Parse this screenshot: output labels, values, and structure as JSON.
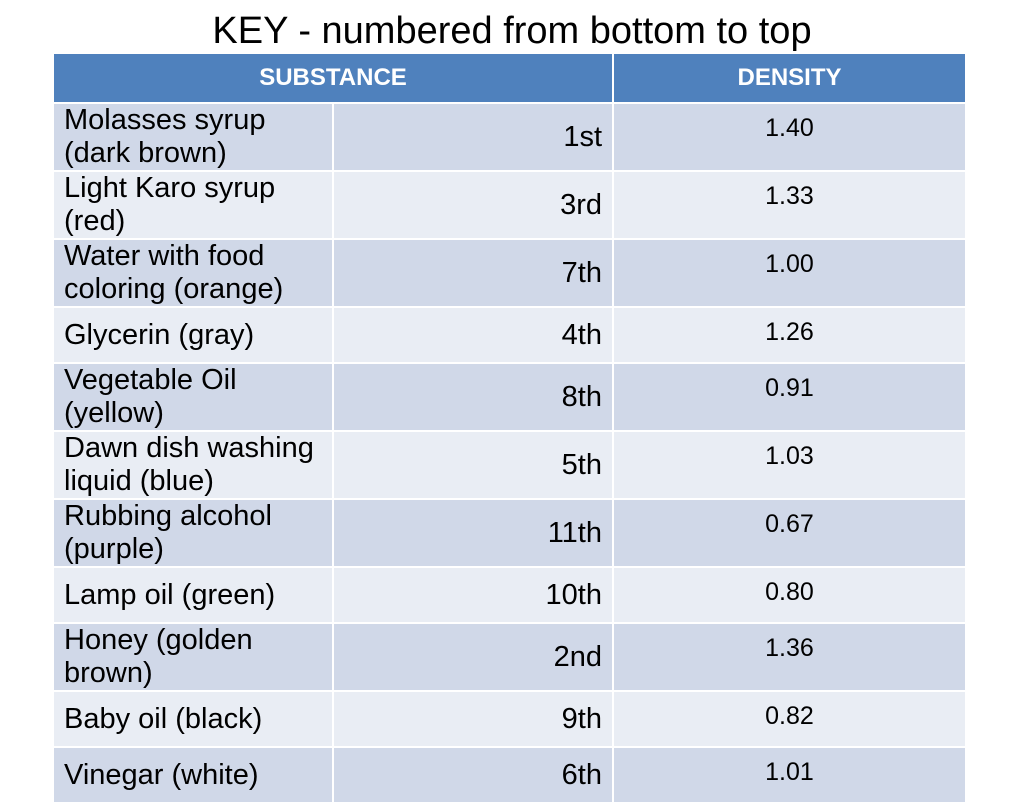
{
  "title": "KEY  - numbered from bottom to top",
  "table": {
    "headers": {
      "substance": "SUBSTANCE",
      "density": "DENSITY"
    },
    "rows": [
      {
        "substance": "Molasses syrup   (dark brown)",
        "order": "1st",
        "density": "1.40"
      },
      {
        "substance": "Light Karo syrup  (red)",
        "order": "3rd",
        "density": "1.33"
      },
      {
        "substance": "Water with food coloring  (orange)",
        "order": "7th",
        "density": "1.00"
      },
      {
        "substance": "Glycerin  (gray)",
        "order": "4th",
        "density": "1.26"
      },
      {
        "substance": "Vegetable Oil  (yellow)",
        "order": "8th",
        "density": "0.91"
      },
      {
        "substance": "Dawn dish washing liquid  (blue)",
        "order": "5th",
        "density": "1.03"
      },
      {
        "substance": "Rubbing alcohol  (purple)",
        "order": "11th",
        "density": "0.67"
      },
      {
        "substance": "Lamp oil  (green)",
        "order": "10th",
        "density": "0.80"
      },
      {
        "substance": "Honey  (golden brown)",
        "order": "2nd",
        "density": "1.36"
      },
      {
        "substance": "Baby oil  (black)",
        "order": "9th",
        "density": "0.82"
      },
      {
        "substance": "Vinegar  (white)",
        "order": "6th",
        "density": "1.01"
      }
    ]
  },
  "colors": {
    "header_bg": "#4f81bd",
    "row_dark": "#d0d8e8",
    "row_light": "#e9edf4"
  }
}
